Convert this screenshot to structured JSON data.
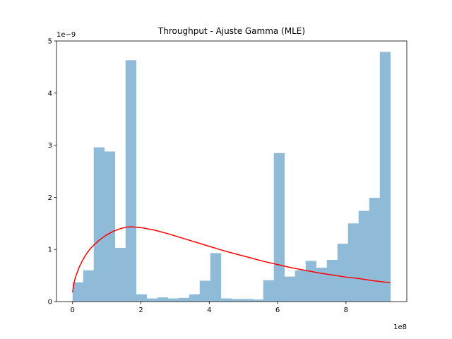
{
  "chart_data": {
    "type": "bar",
    "title": "Throughput - Ajuste Gamma (MLE)",
    "xlabel": "",
    "ylabel": "",
    "x_offset_label": "1e8",
    "y_offset_label": "1e−9",
    "xlim": [
      -0.47,
      9.78
    ],
    "ylim": [
      0,
      5.0
    ],
    "x_ticks": [
      0,
      2,
      4,
      6,
      8
    ],
    "y_ticks": [
      0,
      1,
      2,
      3,
      4,
      5
    ],
    "bin_start": 0.0,
    "bin_width": 0.31,
    "hist_color": "#8fbbd9",
    "hist_values": [
      0.37,
      0.6,
      2.96,
      2.88,
      1.03,
      4.63,
      0.14,
      0.06,
      0.08,
      0.06,
      0.07,
      0.14,
      0.4,
      0.93,
      0.06,
      0.05,
      0.05,
      0.04,
      0.41,
      2.85,
      0.48,
      0.6,
      0.78,
      0.65,
      0.8,
      1.11,
      1.5,
      1.74,
      1.99,
      4.79
    ],
    "fit_series": {
      "color": "#ff0000",
      "x": [
        0.0,
        0.05,
        0.1,
        0.2,
        0.3,
        0.4,
        0.5,
        0.6,
        0.8,
        1.0,
        1.2,
        1.4,
        1.6,
        1.7,
        1.8,
        2.0,
        2.4,
        2.8,
        3.2,
        3.6,
        4.0,
        4.4,
        4.8,
        5.2,
        5.6,
        6.0,
        6.4,
        6.8,
        7.2,
        7.6,
        8.0,
        8.4,
        8.8,
        9.2,
        9.3
      ],
      "y": [
        0.18,
        0.38,
        0.5,
        0.67,
        0.8,
        0.91,
        1.0,
        1.07,
        1.19,
        1.28,
        1.35,
        1.4,
        1.43,
        1.435,
        1.43,
        1.42,
        1.37,
        1.3,
        1.22,
        1.14,
        1.06,
        0.98,
        0.91,
        0.84,
        0.77,
        0.71,
        0.65,
        0.6,
        0.55,
        0.51,
        0.47,
        0.44,
        0.4,
        0.37,
        0.36
      ]
    }
  }
}
